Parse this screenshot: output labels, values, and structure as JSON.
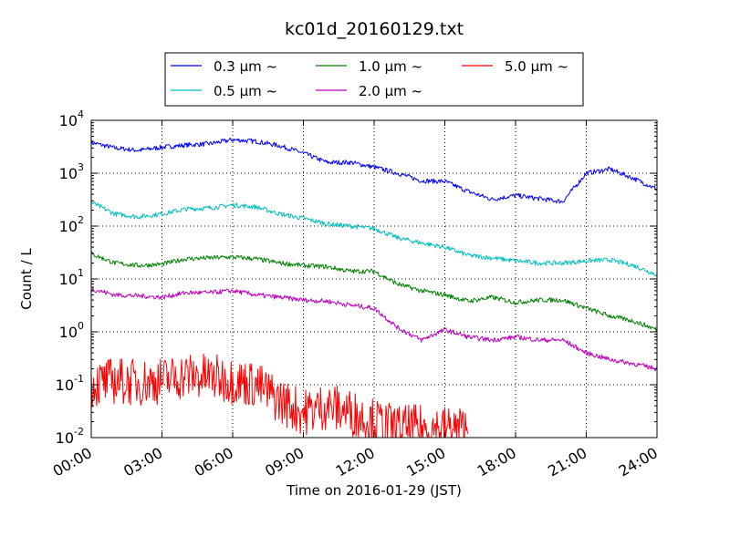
{
  "chart_data": {
    "type": "line",
    "title": "kc01d_20160129.txt",
    "xlabel": "Time on 2016-01-29 (JST)",
    "ylabel": "Count / L",
    "y_scale": "log",
    "ylim": [
      0.01,
      10000
    ],
    "xlim": [
      "00:00",
      "24:00"
    ],
    "grid": true,
    "legend_position": "top-center, above plot",
    "x_tick_labels": [
      "00:00",
      "03:00",
      "06:00",
      "09:00",
      "12:00",
      "15:00",
      "18:00",
      "21:00",
      "24:00"
    ],
    "y_tick_labels": [
      {
        "base": "10",
        "exp": "-2"
      },
      {
        "base": "10",
        "exp": "-1"
      },
      {
        "base": "10",
        "exp": "0"
      },
      {
        "base": "10",
        "exp": "1"
      },
      {
        "base": "10",
        "exp": "2"
      },
      {
        "base": "10",
        "exp": "3"
      },
      {
        "base": "10",
        "exp": "4"
      }
    ],
    "x": [
      "00:00",
      "01:00",
      "02:00",
      "03:00",
      "04:00",
      "05:00",
      "06:00",
      "07:00",
      "08:00",
      "09:00",
      "10:00",
      "11:00",
      "12:00",
      "13:00",
      "14:00",
      "15:00",
      "16:00",
      "17:00",
      "18:00",
      "19:00",
      "20:00",
      "21:00",
      "22:00",
      "23:00",
      "24:00"
    ],
    "series": [
      {
        "name": "0.3 μm ~",
        "color": "#0000ff",
        "values": [
          3800,
          3000,
          2700,
          3100,
          3400,
          3600,
          4300,
          4000,
          3300,
          2400,
          1600,
          1600,
          1300,
          1000,
          720,
          700,
          450,
          320,
          380,
          330,
          290,
          1000,
          1200,
          800,
          500
        ]
      },
      {
        "name": "0.5 μm ~",
        "color": "#00bfbf",
        "values": [
          280,
          170,
          150,
          170,
          210,
          220,
          250,
          230,
          170,
          140,
          110,
          100,
          90,
          60,
          48,
          40,
          28,
          25,
          22,
          20,
          20,
          22,
          23,
          18,
          12
        ]
      },
      {
        "name": "1.0 μm ~",
        "color": "#008000",
        "values": [
          30,
          20,
          18,
          19,
          24,
          25,
          26,
          24,
          20,
          18,
          17,
          14,
          14,
          8,
          6,
          5,
          3.8,
          4.5,
          3.6,
          4,
          4,
          2.8,
          2,
          1.6,
          1.1
        ]
      },
      {
        "name": "2.0 μm ~",
        "color": "#bf00bf",
        "values": [
          6.5,
          5,
          4.8,
          4.5,
          5.5,
          5.5,
          6,
          5,
          4.5,
          4,
          3.8,
          3.2,
          2.8,
          1.2,
          0.7,
          1.1,
          0.8,
          0.7,
          0.8,
          0.7,
          0.7,
          0.4,
          0.3,
          0.25,
          0.2
        ]
      },
      {
        "name": "5.0 μm ~",
        "color": "#ff0000",
        "values": [
          0.1,
          0.12,
          0.11,
          0.12,
          0.15,
          0.14,
          0.12,
          0.1,
          0.05,
          0.03,
          0.04,
          0.03,
          0.02,
          0.015,
          0.015,
          0.015,
          0.014,
          null,
          null,
          null,
          null,
          null,
          null,
          null,
          null
        ]
      }
    ]
  }
}
